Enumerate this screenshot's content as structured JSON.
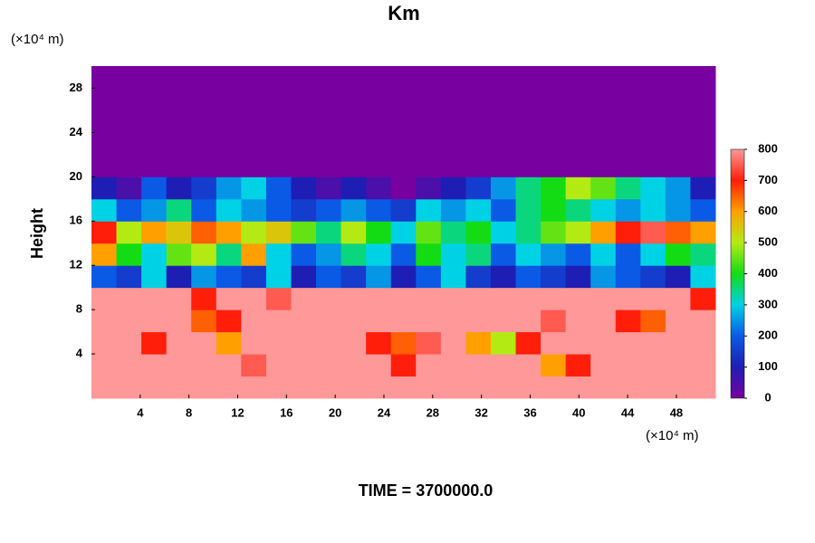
{
  "chart_data": {
    "type": "heatmap",
    "title": "Km",
    "ylabel": "Height",
    "x_unit": "(×10⁴ m)",
    "y_unit": "(×10⁴ m)",
    "footer": "TIME = 3700000.0",
    "xlim": [
      0,
      51.2
    ],
    "ylim": [
      0,
      30
    ],
    "xticks": [
      4,
      8,
      12,
      16,
      20,
      24,
      28,
      32,
      36,
      40,
      44,
      48
    ],
    "yticks": [
      4,
      8,
      12,
      16,
      20,
      24,
      28
    ],
    "clim": [
      0,
      800
    ],
    "cticks": [
      0,
      100,
      200,
      300,
      400,
      500,
      600,
      700,
      800
    ],
    "colorscale": [
      "#7800a0",
      "#1e1eb4",
      "#0a5ae6",
      "#00d2e6",
      "#14dc14",
      "#b4ea14",
      "#ffa000",
      "#ff1e0a",
      "#ff9898"
    ],
    "z": [
      [
        800,
        800,
        800,
        800,
        800,
        800,
        800,
        800,
        800,
        800,
        800,
        800,
        800,
        800,
        800,
        800,
        800,
        800,
        800,
        800,
        800,
        800,
        800,
        800,
        800
      ],
      [
        800,
        800,
        800,
        800,
        800,
        800,
        750,
        800,
        800,
        800,
        800,
        800,
        700,
        800,
        800,
        800,
        800,
        800,
        600,
        700,
        800,
        800,
        800,
        800,
        800
      ],
      [
        800,
        800,
        700,
        800,
        800,
        600,
        800,
        800,
        800,
        800,
        800,
        700,
        650,
        750,
        800,
        600,
        500,
        700,
        800,
        800,
        800,
        800,
        800,
        800,
        800
      ],
      [
        800,
        800,
        800,
        800,
        650,
        700,
        800,
        800,
        800,
        800,
        800,
        800,
        800,
        800,
        800,
        800,
        800,
        800,
        750,
        800,
        800,
        700,
        650,
        800,
        800
      ],
      [
        800,
        800,
        800,
        800,
        700,
        800,
        800,
        750,
        800,
        800,
        800,
        800,
        800,
        800,
        800,
        800,
        800,
        800,
        800,
        800,
        800,
        800,
        800,
        800,
        700
      ],
      [
        200,
        150,
        300,
        100,
        250,
        200,
        150,
        300,
        100,
        200,
        150,
        250,
        100,
        200,
        300,
        150,
        100,
        200,
        150,
        100,
        250,
        200,
        150,
        100,
        300
      ],
      [
        600,
        400,
        300,
        450,
        500,
        350,
        600,
        300,
        200,
        250,
        350,
        300,
        200,
        400,
        300,
        350,
        200,
        300,
        250,
        200,
        300,
        200,
        300,
        400,
        350
      ],
      [
        700,
        500,
        600,
        550,
        650,
        600,
        500,
        550,
        450,
        350,
        500,
        400,
        300,
        450,
        350,
        400,
        300,
        350,
        450,
        500,
        600,
        700,
        750,
        650,
        600
      ],
      [
        300,
        200,
        250,
        350,
        200,
        300,
        250,
        200,
        150,
        200,
        250,
        200,
        150,
        300,
        250,
        300,
        200,
        350,
        400,
        350,
        300,
        250,
        300,
        250,
        200
      ],
      [
        100,
        50,
        200,
        100,
        150,
        250,
        300,
        200,
        100,
        50,
        100,
        50,
        0,
        50,
        100,
        150,
        250,
        350,
        400,
        500,
        450,
        350,
        300,
        250,
        100
      ],
      [
        0,
        0,
        0,
        0,
        0,
        0,
        0,
        0,
        0,
        0,
        0,
        0,
        0,
        0,
        0,
        0,
        0,
        0,
        0,
        0,
        0,
        0,
        0,
        0,
        0
      ],
      [
        0,
        0,
        0,
        0,
        0,
        0,
        0,
        0,
        0,
        0,
        0,
        0,
        0,
        0,
        0,
        0,
        0,
        0,
        0,
        0,
        0,
        0,
        0,
        0,
        0
      ],
      [
        0,
        0,
        0,
        0,
        0,
        0,
        0,
        0,
        0,
        0,
        0,
        0,
        0,
        0,
        0,
        0,
        0,
        0,
        0,
        0,
        0,
        0,
        0,
        0,
        0
      ],
      [
        0,
        0,
        0,
        0,
        0,
        0,
        0,
        0,
        0,
        0,
        0,
        0,
        0,
        0,
        0,
        0,
        0,
        0,
        0,
        0,
        0,
        0,
        0,
        0,
        0
      ],
      [
        0,
        0,
        0,
        0,
        0,
        0,
        0,
        0,
        0,
        0,
        0,
        0,
        0,
        0,
        0,
        0,
        0,
        0,
        0,
        0,
        0,
        0,
        0,
        0,
        0
      ]
    ]
  }
}
